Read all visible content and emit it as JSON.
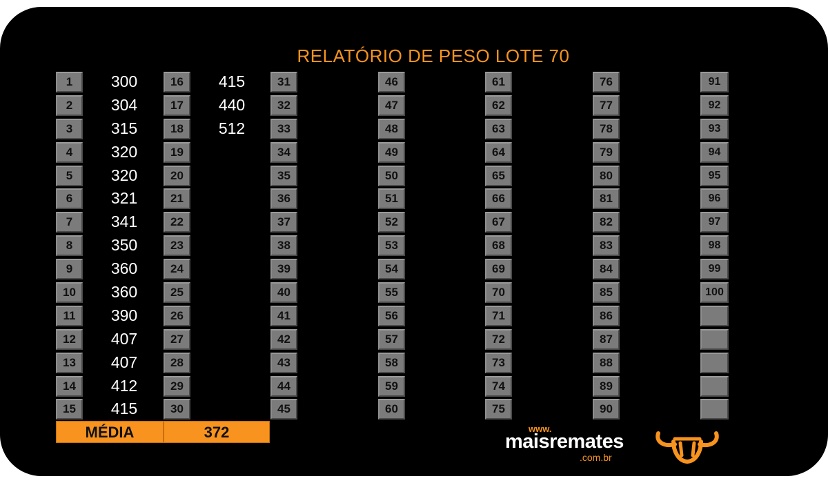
{
  "title": "RELATÓRIO DE PESO LOTE 70",
  "columns": [
    {
      "numbers": [
        "1",
        "2",
        "3",
        "4",
        "5",
        "6",
        "7",
        "8",
        "9",
        "10",
        "11",
        "12",
        "13",
        "14",
        "15"
      ],
      "values": [
        "300",
        "304",
        "315",
        "320",
        "320",
        "321",
        "341",
        "350",
        "360",
        "360",
        "390",
        "407",
        "407",
        "412",
        "415"
      ]
    },
    {
      "numbers": [
        "16",
        "17",
        "18",
        "19",
        "20",
        "21",
        "22",
        "23",
        "24",
        "25",
        "26",
        "27",
        "28",
        "29",
        "30"
      ],
      "values": [
        "415",
        "440",
        "512",
        "",
        "",
        "",
        "",
        "",
        "",
        "",
        "",
        "",
        "",
        "",
        ""
      ]
    },
    {
      "numbers": [
        "31",
        "32",
        "33",
        "34",
        "35",
        "36",
        "37",
        "38",
        "39",
        "40",
        "41",
        "42",
        "43",
        "44",
        "45"
      ],
      "values": [
        "",
        "",
        "",
        "",
        "",
        "",
        "",
        "",
        "",
        "",
        "",
        "",
        "",
        "",
        ""
      ]
    },
    {
      "numbers": [
        "46",
        "47",
        "48",
        "49",
        "50",
        "51",
        "52",
        "53",
        "54",
        "55",
        "56",
        "57",
        "58",
        "59",
        "60"
      ],
      "values": [
        "",
        "",
        "",
        "",
        "",
        "",
        "",
        "",
        "",
        "",
        "",
        "",
        "",
        "",
        ""
      ]
    },
    {
      "numbers": [
        "61",
        "62",
        "63",
        "64",
        "65",
        "66",
        "67",
        "68",
        "69",
        "70",
        "71",
        "72",
        "73",
        "74",
        "75"
      ],
      "values": [
        "",
        "",
        "",
        "",
        "",
        "",
        "",
        "",
        "",
        "",
        "",
        "",
        "",
        "",
        ""
      ]
    },
    {
      "numbers": [
        "76",
        "77",
        "78",
        "79",
        "80",
        "81",
        "82",
        "83",
        "84",
        "85",
        "86",
        "87",
        "88",
        "89",
        "90"
      ],
      "values": [
        "",
        "",
        "",
        "",
        "",
        "",
        "",
        "",
        "",
        "",
        "",
        "",
        "",
        "",
        ""
      ]
    },
    {
      "numbers": [
        "91",
        "92",
        "93",
        "94",
        "95",
        "96",
        "97",
        "98",
        "99",
        "100",
        "",
        "",
        "",
        "",
        ""
      ],
      "values": [
        "",
        "",
        "",
        "",
        "",
        "",
        "",
        "",
        "",
        "",
        "",
        "",
        "",
        "",
        ""
      ]
    }
  ],
  "footer": {
    "label": "MÉDIA",
    "value": "372"
  },
  "logo": {
    "www": "www.",
    "name": "maisremates",
    "domain": ".com.br"
  },
  "colors": {
    "accent": "#f7931e",
    "cell": "#7b7b7b",
    "background": "#000000"
  },
  "icons": {
    "brand": "bull-head-icon"
  }
}
